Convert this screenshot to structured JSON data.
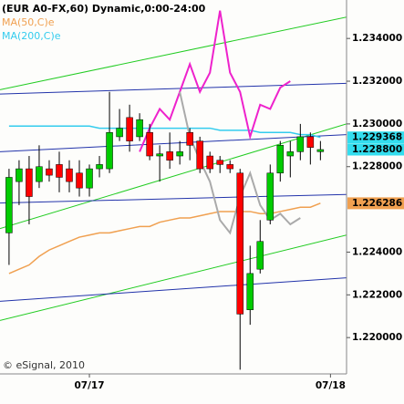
{
  "chart_data": {
    "type": "candlestick",
    "title": "(EUR A0-FX,60) Dynamic,0:00-24:00",
    "source": "© eSignal, 2010",
    "x": [
      0,
      1,
      2,
      3,
      4,
      5,
      6,
      7,
      8,
      9,
      10,
      11,
      12,
      13,
      14,
      15,
      16,
      17,
      18,
      19,
      20,
      21,
      22,
      23,
      24,
      25,
      26,
      27,
      28,
      29,
      30,
      31
    ],
    "open": [
      1.2249,
      1.2273,
      1.2279,
      1.2273,
      1.2279,
      1.2281,
      1.2279,
      1.2277,
      1.227,
      1.2279,
      1.2279,
      1.2294,
      1.2303,
      1.2294,
      1.2296,
      1.2285,
      1.2287,
      1.2285,
      1.2296,
      1.2292,
      1.2285,
      1.2283,
      1.2281,
      1.2277,
      1.2213,
      1.2232,
      1.2255,
      1.2277,
      1.2285,
      1.2287,
      1.2294,
      1.2287
    ],
    "high": [
      1.2279,
      1.2283,
      1.2285,
      1.229,
      1.2283,
      1.2287,
      1.2283,
      1.2283,
      1.2281,
      1.2285,
      1.2315,
      1.2307,
      1.2309,
      1.2305,
      1.23,
      1.229,
      1.2296,
      1.2292,
      1.2298,
      1.2294,
      1.2287,
      1.2285,
      1.2283,
      1.2279,
      1.2243,
      1.2255,
      1.2281,
      1.2292,
      1.2292,
      1.23,
      1.2296,
      1.2292
    ],
    "low": [
      1.2234,
      1.2262,
      1.2253,
      1.227,
      1.2273,
      1.2268,
      1.2268,
      1.2266,
      1.2266,
      1.2275,
      1.2277,
      1.2292,
      1.2287,
      1.2292,
      1.2283,
      1.2273,
      1.2279,
      1.2281,
      1.2283,
      1.2277,
      1.2277,
      1.2277,
      1.2277,
      1.2185,
      1.2206,
      1.223,
      1.2253,
      1.2273,
      1.2275,
      1.2283,
      1.2281,
      1.2283
    ],
    "close": [
      1.2275,
      1.2279,
      1.2266,
      1.228,
      1.2276,
      1.2275,
      1.2273,
      1.227,
      1.2279,
      1.2281,
      1.2296,
      1.2298,
      1.2292,
      1.2302,
      1.2285,
      1.2286,
      1.2283,
      1.2287,
      1.229,
      1.2279,
      1.2279,
      1.2281,
      1.2279,
      1.2211,
      1.223,
      1.2245,
      1.2277,
      1.229,
      1.2287,
      1.2294,
      1.2289,
      1.2288
    ],
    "up_color": "#00cc00",
    "down_color": "#ff0000",
    "wick_color": "#000000",
    "series": [
      {
        "name": "MA(50,C)e",
        "color": "#f0a050",
        "values": [
          1.223,
          1.2232,
          1.2234,
          1.2238,
          1.2241,
          1.2243,
          1.2245,
          1.2247,
          1.2248,
          1.2249,
          1.2249,
          1.225,
          1.2251,
          1.2252,
          1.2252,
          1.2254,
          1.2255,
          1.2256,
          1.2256,
          1.2257,
          1.2258,
          1.2259,
          1.2259,
          1.2259,
          1.2259,
          1.2258,
          1.2258,
          1.2259,
          1.226,
          1.2261,
          1.2261,
          1.22629
        ]
      },
      {
        "name": "MA(200,C)e",
        "color": "#33ccee",
        "values": [
          1.2299,
          1.2299,
          1.2299,
          1.2299,
          1.2299,
          1.2299,
          1.2299,
          1.2299,
          1.2299,
          1.2298,
          1.2298,
          1.2298,
          1.2298,
          1.2298,
          1.2298,
          1.2298,
          1.2298,
          1.2298,
          1.2298,
          1.2298,
          1.2298,
          1.2297,
          1.2297,
          1.2297,
          1.2297,
          1.2296,
          1.2296,
          1.2296,
          1.2296,
          1.2295,
          1.2295,
          1.22937
        ]
      },
      {
        "color": "#ee22cc",
        "values": [
          null,
          null,
          null,
          null,
          null,
          null,
          null,
          null,
          null,
          null,
          null,
          null,
          null,
          1.2287,
          1.2298,
          1.2307,
          1.2302,
          1.2315,
          1.2328,
          1.2315,
          1.2324,
          1.2353,
          1.2324,
          1.2315,
          1.2294,
          1.2309,
          1.2307,
          1.2317,
          1.232,
          null,
          null,
          null
        ]
      },
      {
        "color": "#aaaaaa",
        "values": [
          null,
          null,
          null,
          null,
          null,
          null,
          null,
          null,
          null,
          null,
          null,
          null,
          null,
          null,
          null,
          null,
          null,
          1.2315,
          1.2294,
          1.2283,
          1.2273,
          1.2255,
          1.2249,
          1.2266,
          1.2277,
          1.2262,
          1.2255,
          1.2258,
          1.2253,
          1.2256,
          null,
          null
        ]
      }
    ],
    "lines": [
      {
        "color": "#22cc22",
        "x": [
          -0.9,
          33.6
        ],
        "y": [
          1.2316,
          1.235
        ]
      },
      {
        "color": "#22cc22",
        "x": [
          -0.9,
          33.6
        ],
        "y": [
          1.2251,
          1.23
        ]
      },
      {
        "color": "#22cc22",
        "x": [
          -0.9,
          33.6
        ],
        "y": [
          1.2208,
          1.2248
        ]
      },
      {
        "color": "#2233aa",
        "x": [
          -0.9,
          33.6
        ],
        "y": [
          1.2314,
          1.2319
        ]
      },
      {
        "color": "#2233aa",
        "x": [
          -0.9,
          33.6
        ],
        "y": [
          1.2287,
          1.2295
        ]
      },
      {
        "color": "#2233aa",
        "x": [
          -0.9,
          33.6
        ],
        "y": [
          1.2263,
          1.2267
        ]
      },
      {
        "color": "#2233aa",
        "x": [
          -0.9,
          33.6
        ],
        "y": [
          1.2217,
          1.2228
        ]
      }
    ],
    "last_labels": [
      {
        "value": 1.229368,
        "label": "1.229368",
        "color": "#33ddee"
      },
      {
        "value": 1.2288,
        "label": "1.228800",
        "color": "#33ddee"
      },
      {
        "value": 1.226286,
        "label": "1.226286",
        "color": "#f0a050"
      }
    ],
    "xlim": [
      -0.9,
      33.6
    ],
    "ylim": [
      1.2183,
      1.2358
    ],
    "xticks": [
      {
        "value": 8,
        "label": "07/17"
      },
      {
        "value": 32,
        "label": "07/18"
      }
    ],
    "yticks": [
      {
        "value": 1.234,
        "label": "1.234000"
      },
      {
        "value": 1.232,
        "label": "1.232000"
      },
      {
        "value": 1.23,
        "label": "1.230000"
      },
      {
        "value": 1.228,
        "label": "1.228000"
      },
      {
        "value": 1.224,
        "label": "1.224000"
      },
      {
        "value": 1.222,
        "label": "1.222000"
      },
      {
        "value": 1.22,
        "label": "1.220000"
      }
    ],
    "grid": false
  }
}
